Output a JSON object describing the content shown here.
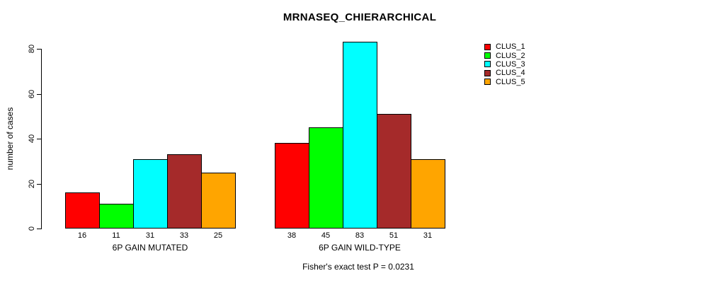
{
  "chart_data": {
    "type": "bar",
    "title": "MRNASEQ_CHIERARCHICAL",
    "ylabel": "number of cases",
    "xlabel": "",
    "annotation": "Fisher's exact test P = 0.0231",
    "categories": [
      "6P GAIN MUTATED",
      "6P GAIN WILD-TYPE"
    ],
    "series": [
      {
        "name": "CLUS_1",
        "color": "#FF0000",
        "values": [
          16,
          38
        ]
      },
      {
        "name": "CLUS_2",
        "color": "#00FF00",
        "values": [
          11,
          45
        ]
      },
      {
        "name": "CLUS_3",
        "color": "#00FFFF",
        "values": [
          31,
          83
        ]
      },
      {
        "name": "CLUS_4",
        "color": "#A52A2A",
        "values": [
          33,
          51
        ]
      },
      {
        "name": "CLUS_5",
        "color": "#FFA500",
        "values": [
          25,
          31
        ]
      }
    ],
    "yticks": [
      0,
      20,
      40,
      60,
      80
    ],
    "ylim": [
      0,
      83
    ],
    "grid": false,
    "show_value_labels": true,
    "legend_position": "right",
    "bar_border_color": "#000000",
    "axis_color": "#000000",
    "background_color": "#FFFFFF"
  }
}
